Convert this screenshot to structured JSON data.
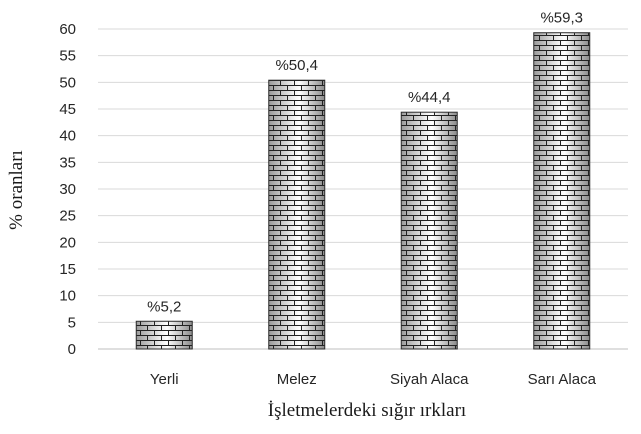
{
  "chart_data": {
    "type": "bar",
    "categories": [
      "Yerli",
      "Melez",
      "Siyah Alaca",
      "Sarı Alaca"
    ],
    "values": [
      5.2,
      50.4,
      44.4,
      59.3
    ],
    "data_labels": [
      "%5,2",
      "%50,4",
      "%44,4",
      "%59,3"
    ],
    "xlabel": "İşletmelerdeki sığır ırkları",
    "ylabel": "% oranları",
    "ylim": [
      0,
      60
    ],
    "yticks": [
      0,
      5,
      10,
      15,
      20,
      25,
      30,
      35,
      40,
      45,
      50,
      55,
      60
    ],
    "grid": true,
    "legend": "none",
    "bar_pattern": "brick"
  }
}
